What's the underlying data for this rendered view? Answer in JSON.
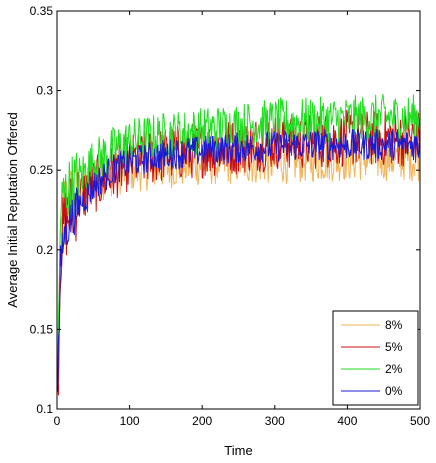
{
  "chart_data": {
    "type": "line",
    "title": "",
    "xlabel": "Time",
    "ylabel": "Average Initial Reputation Offered",
    "xlim": [
      0,
      500
    ],
    "ylim": [
      0.1,
      0.35
    ],
    "xticks": [
      0,
      100,
      200,
      300,
      400,
      500
    ],
    "yticks": [
      0.1,
      0.15,
      0.2,
      0.25,
      0.3,
      0.35
    ],
    "xtick_labels": [
      "0",
      "100",
      "200",
      "300",
      "400",
      "500"
    ],
    "ytick_labels": [
      "0.1",
      "0.15",
      "0.2",
      "0.25",
      "0.3",
      "0.35"
    ],
    "grid": false,
    "legend_position": "bottom-right",
    "legend_order": [
      "8%",
      "5%",
      "2%",
      "0%"
    ],
    "series": [
      {
        "name": "8%",
        "color": "#f2b55a",
        "x": [
          1,
          5,
          10,
          20,
          30,
          50,
          75,
          100,
          150,
          200,
          250,
          300,
          350,
          400,
          450,
          500
        ],
        "values": [
          0.12,
          0.21,
          0.23,
          0.235,
          0.238,
          0.243,
          0.247,
          0.25,
          0.252,
          0.254,
          0.255,
          0.255,
          0.256,
          0.257,
          0.257,
          0.257
        ],
        "noise": 0.014
      },
      {
        "name": "5%",
        "color": "#cc1010",
        "x": [
          1,
          5,
          10,
          20,
          30,
          50,
          75,
          100,
          150,
          200,
          250,
          300,
          350,
          400,
          450,
          500
        ],
        "values": [
          0.11,
          0.2,
          0.215,
          0.225,
          0.232,
          0.24,
          0.248,
          0.255,
          0.26,
          0.263,
          0.265,
          0.268,
          0.268,
          0.27,
          0.27,
          0.27
        ],
        "noise": 0.018
      },
      {
        "name": "2%",
        "color": "#22dd22",
        "x": [
          1,
          5,
          10,
          20,
          30,
          50,
          75,
          100,
          150,
          200,
          250,
          300,
          350,
          400,
          450,
          500
        ],
        "values": [
          0.12,
          0.225,
          0.235,
          0.24,
          0.245,
          0.255,
          0.262,
          0.268,
          0.272,
          0.275,
          0.278,
          0.28,
          0.281,
          0.282,
          0.283,
          0.283
        ],
        "noise": 0.015
      },
      {
        "name": "0%",
        "color": "#1a1ad6",
        "x": [
          1,
          5,
          10,
          20,
          30,
          50,
          75,
          100,
          150,
          200,
          250,
          300,
          350,
          400,
          450,
          500
        ],
        "values": [
          0.12,
          0.19,
          0.21,
          0.22,
          0.228,
          0.24,
          0.25,
          0.255,
          0.26,
          0.262,
          0.264,
          0.265,
          0.266,
          0.266,
          0.266,
          0.266
        ],
        "noise": 0.01
      }
    ]
  }
}
